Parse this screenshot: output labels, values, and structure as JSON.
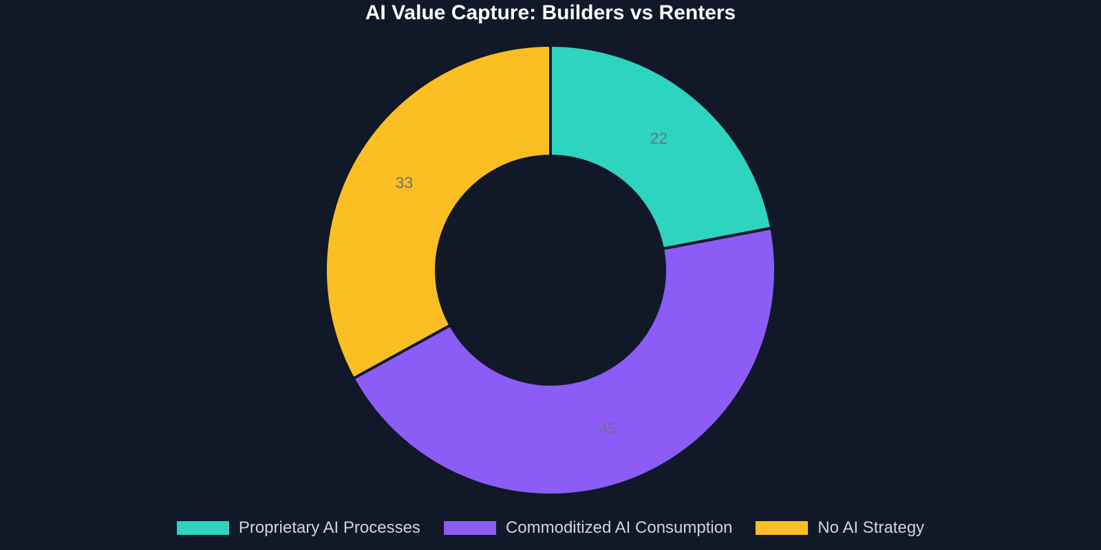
{
  "chart_data": {
    "type": "pie",
    "variant": "donut",
    "title": "AI Value Capture: Builders vs Renters",
    "categories": [
      "Proprietary AI Processes",
      "Commoditized AI Consumption",
      "No AI Strategy"
    ],
    "values": [
      22,
      45,
      33
    ],
    "colors": [
      "#2dd4bf",
      "#8b5cf6",
      "#fbbf24"
    ],
    "data_labels": [
      "22",
      "45",
      "33"
    ],
    "legend_position": "bottom",
    "background": "#111827"
  }
}
